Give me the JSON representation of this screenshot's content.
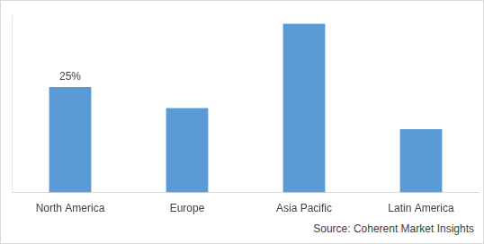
{
  "chart_data": {
    "type": "bar",
    "categories": [
      "North America",
      "Europe",
      "Asia Pacific",
      "Latin America"
    ],
    "values": [
      25,
      20,
      40,
      15
    ],
    "value_labels": [
      "25%",
      null,
      null,
      null
    ],
    "data_labels": true,
    "color": "#5b9bd5",
    "ylim": [
      0,
      42
    ],
    "yticks": [],
    "tick_labels": "x",
    "grid": false,
    "annotations": [
      "Source: Coherent Market Insights"
    ]
  }
}
